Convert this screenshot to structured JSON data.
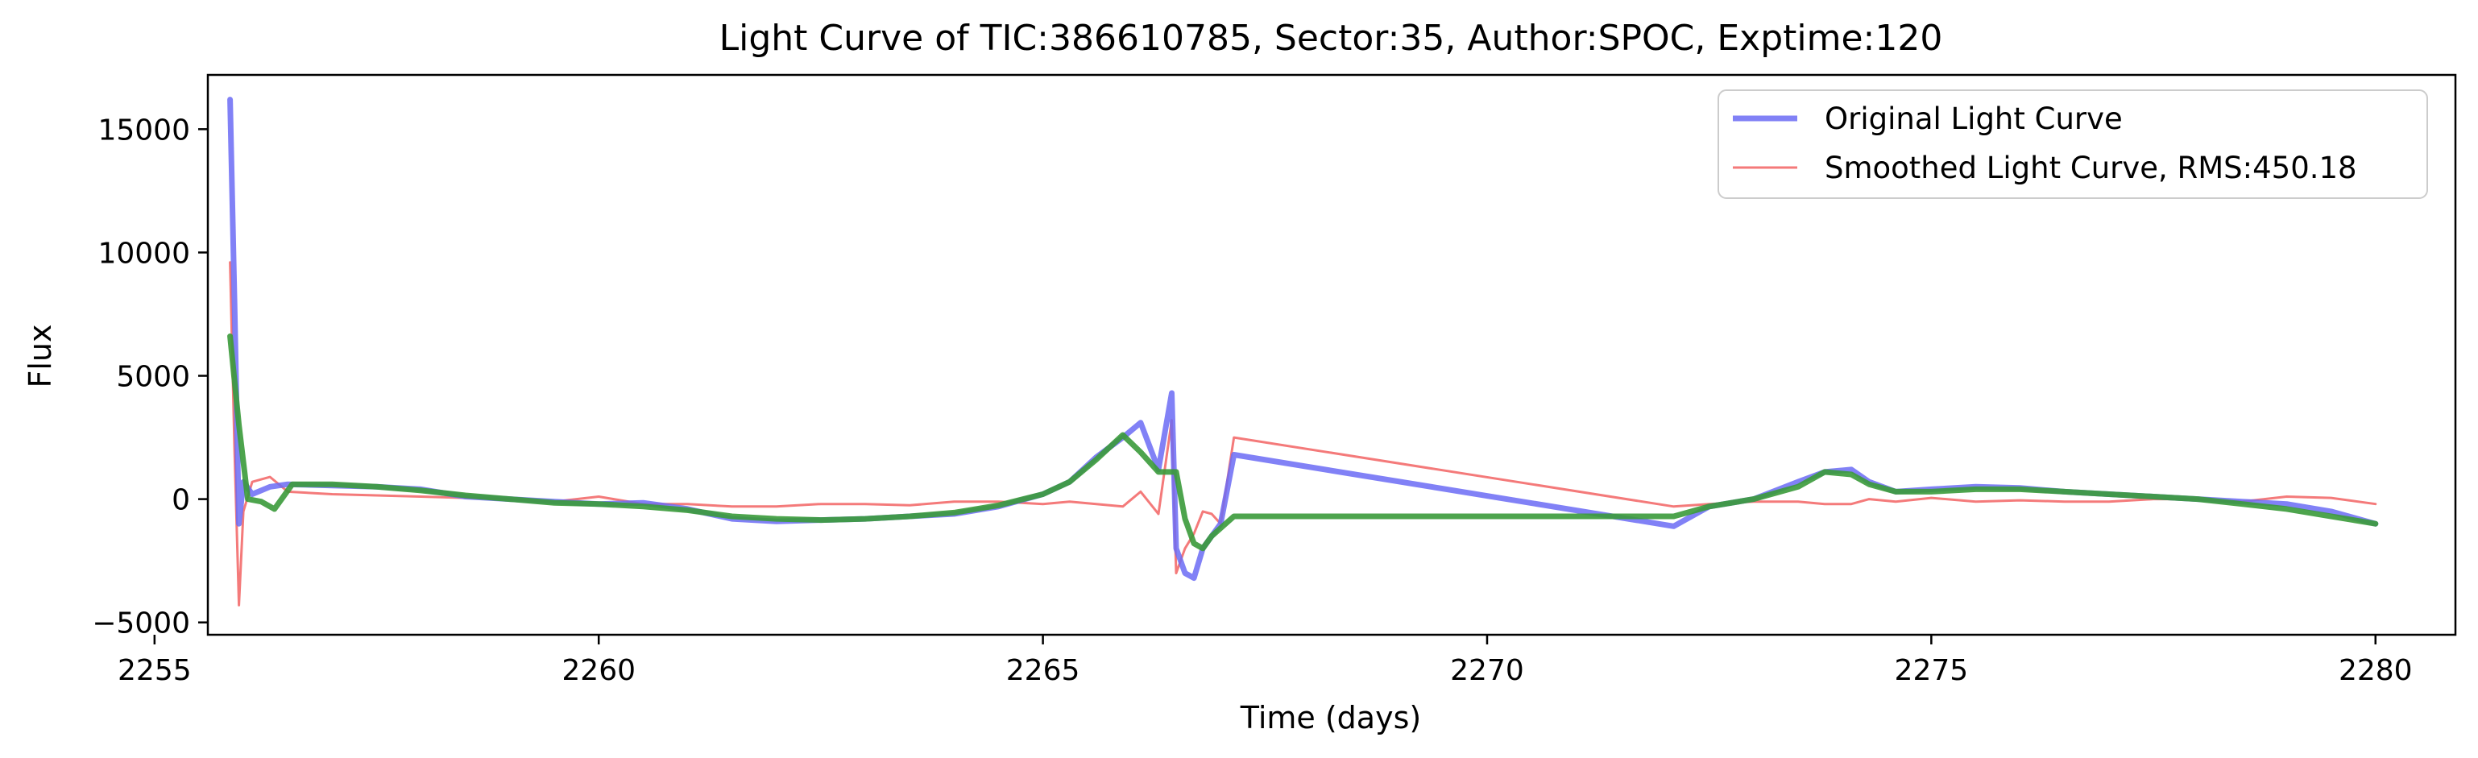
{
  "chart_data": {
    "type": "line",
    "title": "Light Curve of TIC:386610785, Sector:35, Author:SPOC, Exptime:120",
    "xlabel": "Time (days)",
    "ylabel": "Flux",
    "xlim": [
      2255.6,
      2280.9
    ],
    "ylim": [
      -5500,
      17200
    ],
    "xticks": [
      2255,
      2260,
      2265,
      2270,
      2275,
      2280
    ],
    "yticks": [
      -5000,
      0,
      5000,
      10000,
      15000
    ],
    "grid": false,
    "legend_position": "upper right",
    "colors": {
      "original": "#6b6bf5",
      "smoothed": "#f47a7a",
      "trend": "#3a9a3a"
    },
    "series": [
      {
        "name": "Original Light Curve",
        "x": [
          2255.85,
          2255.9,
          2255.95,
          2256.0,
          2256.1,
          2256.3,
          2256.5,
          2257.0,
          2257.5,
          2258.0,
          2258.5,
          2259.0,
          2259.5,
          2260.0,
          2260.5,
          2261.0,
          2261.5,
          2262.0,
          2262.5,
          2263.0,
          2263.5,
          2264.0,
          2264.5,
          2265.0,
          2265.3,
          2265.6,
          2265.9,
          2266.1,
          2266.3,
          2266.45,
          2266.5,
          2266.6,
          2266.7,
          2266.8,
          2266.9,
          2267.0,
          2267.15,
          2272.1,
          2272.5,
          2273.0,
          2273.5,
          2273.8,
          2274.1,
          2274.3,
          2274.6,
          2275.0,
          2275.5,
          2276.0,
          2276.5,
          2277.0,
          2277.5,
          2278.0,
          2278.5,
          2279.0,
          2279.5,
          2280.0
        ],
        "y": [
          16200,
          8000,
          -1000,
          700,
          200,
          500,
          600,
          550,
          500,
          400,
          100,
          0,
          -100,
          -200,
          -150,
          -400,
          -800,
          -900,
          -850,
          -800,
          -700,
          -600,
          -300,
          200,
          700,
          1700,
          2500,
          3100,
          1200,
          4300,
          -2000,
          -3000,
          -3200,
          -2000,
          -1500,
          -1000,
          1800,
          -1100,
          -300,
          0,
          700,
          1100,
          1200,
          700,
          300,
          400,
          500,
          450,
          300,
          200,
          100,
          0,
          -100,
          -200,
          -500,
          -1000
        ]
      },
      {
        "name": "Smoothed Light Curve, RMS:450.18",
        "x": [
          2255.85,
          2255.9,
          2255.95,
          2256.0,
          2256.1,
          2256.3,
          2256.5,
          2257.0,
          2257.5,
          2258.0,
          2258.5,
          2259.0,
          2259.5,
          2260.0,
          2260.5,
          2261.0,
          2261.5,
          2262.0,
          2262.5,
          2263.0,
          2263.5,
          2264.0,
          2264.5,
          2265.0,
          2265.3,
          2265.6,
          2265.9,
          2266.1,
          2266.3,
          2266.45,
          2266.5,
          2266.6,
          2266.7,
          2266.8,
          2266.9,
          2267.0,
          2267.15,
          2272.1,
          2272.5,
          2273.0,
          2273.5,
          2273.8,
          2274.1,
          2274.3,
          2274.6,
          2275.0,
          2275.5,
          2276.0,
          2276.5,
          2277.0,
          2277.5,
          2278.0,
          2278.5,
          2279.0,
          2279.5,
          2280.0
        ],
        "y": [
          9600,
          2000,
          -4300,
          -500,
          700,
          900,
          300,
          200,
          150,
          100,
          50,
          0,
          -100,
          100,
          -200,
          -200,
          -300,
          -300,
          -200,
          -200,
          -250,
          -100,
          -100,
          -200,
          -100,
          -200,
          -300,
          300,
          -600,
          3200,
          -3000,
          -2000,
          -1400,
          -500,
          -600,
          -1000,
          2500,
          -300,
          -200,
          -100,
          -100,
          -200,
          -200,
          0,
          -100,
          50,
          -100,
          -50,
          -100,
          -100,
          0,
          0,
          -100,
          100,
          50,
          -200
        ]
      },
      {
        "x": [
          2255.85,
          2255.95,
          2256.05,
          2256.2,
          2256.35,
          2256.55,
          2257.0,
          2257.5,
          2258.0,
          2258.5,
          2259.0,
          2259.5,
          2260.0,
          2260.5,
          2261.0,
          2261.5,
          2262.0,
          2262.5,
          2263.0,
          2263.5,
          2264.0,
          2264.5,
          2265.0,
          2265.3,
          2265.6,
          2265.9,
          2266.1,
          2266.3,
          2266.5,
          2266.6,
          2266.7,
          2266.8,
          2266.9,
          2267.15,
          2272.1,
          2272.5,
          2273.0,
          2273.5,
          2273.8,
          2274.1,
          2274.3,
          2274.6,
          2275.0,
          2275.5,
          2276.0,
          2276.5,
          2277.0,
          2277.5,
          2278.0,
          2278.5,
          2279.0,
          2279.5,
          2280.0
        ],
        "y": [
          6600,
          3000,
          0,
          -100,
          -400,
          600,
          600,
          500,
          350,
          150,
          0,
          -150,
          -200,
          -300,
          -450,
          -700,
          -800,
          -850,
          -800,
          -700,
          -550,
          -250,
          200,
          700,
          1600,
          2600,
          1900,
          1100,
          1100,
          -800,
          -1800,
          -2000,
          -1500,
          -700,
          -700,
          -300,
          0,
          500,
          1100,
          1000,
          600,
          300,
          300,
          400,
          400,
          300,
          200,
          100,
          0,
          -200,
          -400,
          -700,
          -1000
        ]
      }
    ]
  }
}
